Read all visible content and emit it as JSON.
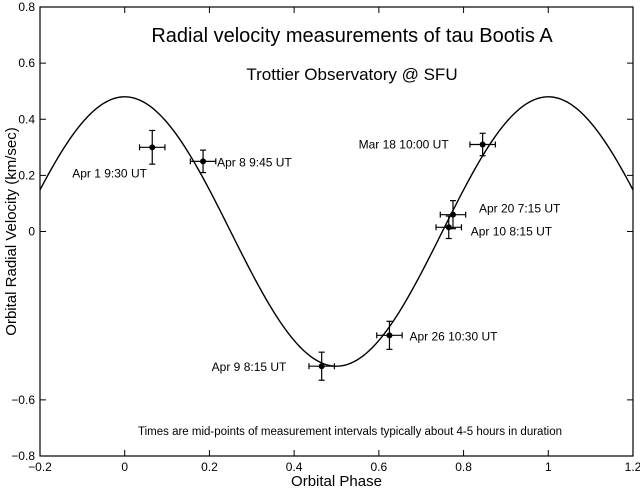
{
  "chart_data": {
    "type": "scatter",
    "title": "Radial velocity measurements of tau Bootis A",
    "subtitle": "Trottier Observatory @ SFU",
    "xlabel": "Orbital Phase",
    "ylabel": "Orbital Radial Velocity (km/sec)",
    "xlim": [
      -0.2,
      1.2
    ],
    "ylim": [
      -0.8,
      0.8
    ],
    "x_ticks": [
      -0.2,
      0,
      0.2,
      0.4,
      0.6,
      0.8,
      1.0,
      1.2
    ],
    "x_tick_labels": [
      "−0.2",
      "0",
      "0.2",
      "0.4",
      "0.6",
      "0.8",
      "1",
      "1.2"
    ],
    "y_ticks": [
      -0.8,
      -0.6,
      0,
      0.2,
      0.4,
      0.6,
      0.8
    ],
    "y_tick_labels": [
      "−0.8",
      "−0.6",
      "0",
      "0.2",
      "0.4",
      "0.6",
      "0.8"
    ],
    "grid": false,
    "points": [
      {
        "label": "Apr 1 9:30 UT",
        "x": 0.065,
        "y": 0.3,
        "xerr": 0.03,
        "yerr": 0.06
      },
      {
        "label": "Apr 8 9:45 UT",
        "x": 0.185,
        "y": 0.25,
        "xerr": 0.03,
        "yerr": 0.04
      },
      {
        "label": "Apr 9 8:15 UT",
        "x": 0.465,
        "y": -0.48,
        "xerr": 0.03,
        "yerr": 0.05
      },
      {
        "label": "Apr 26 10:30 UT",
        "x": 0.625,
        "y": -0.37,
        "xerr": 0.03,
        "yerr": 0.05
      },
      {
        "label": "Apr 10 8:15 UT",
        "x": 0.765,
        "y": 0.015,
        "xerr": 0.03,
        "yerr": 0.04
      },
      {
        "label": "Apr 20 7:15 UT",
        "x": 0.775,
        "y": 0.06,
        "xerr": 0.03,
        "yerr": 0.05
      },
      {
        "label": "Mar 18 10:00 UT",
        "x": 0.845,
        "y": 0.31,
        "xerr": 0.03,
        "yerr": 0.04
      }
    ],
    "model_curve": {
      "type": "sinusoid",
      "amplitude": 0.48,
      "period": 1.0
    },
    "annotation": "Times are mid-points of measurement intervals typically about 4-5 hours in duration"
  }
}
